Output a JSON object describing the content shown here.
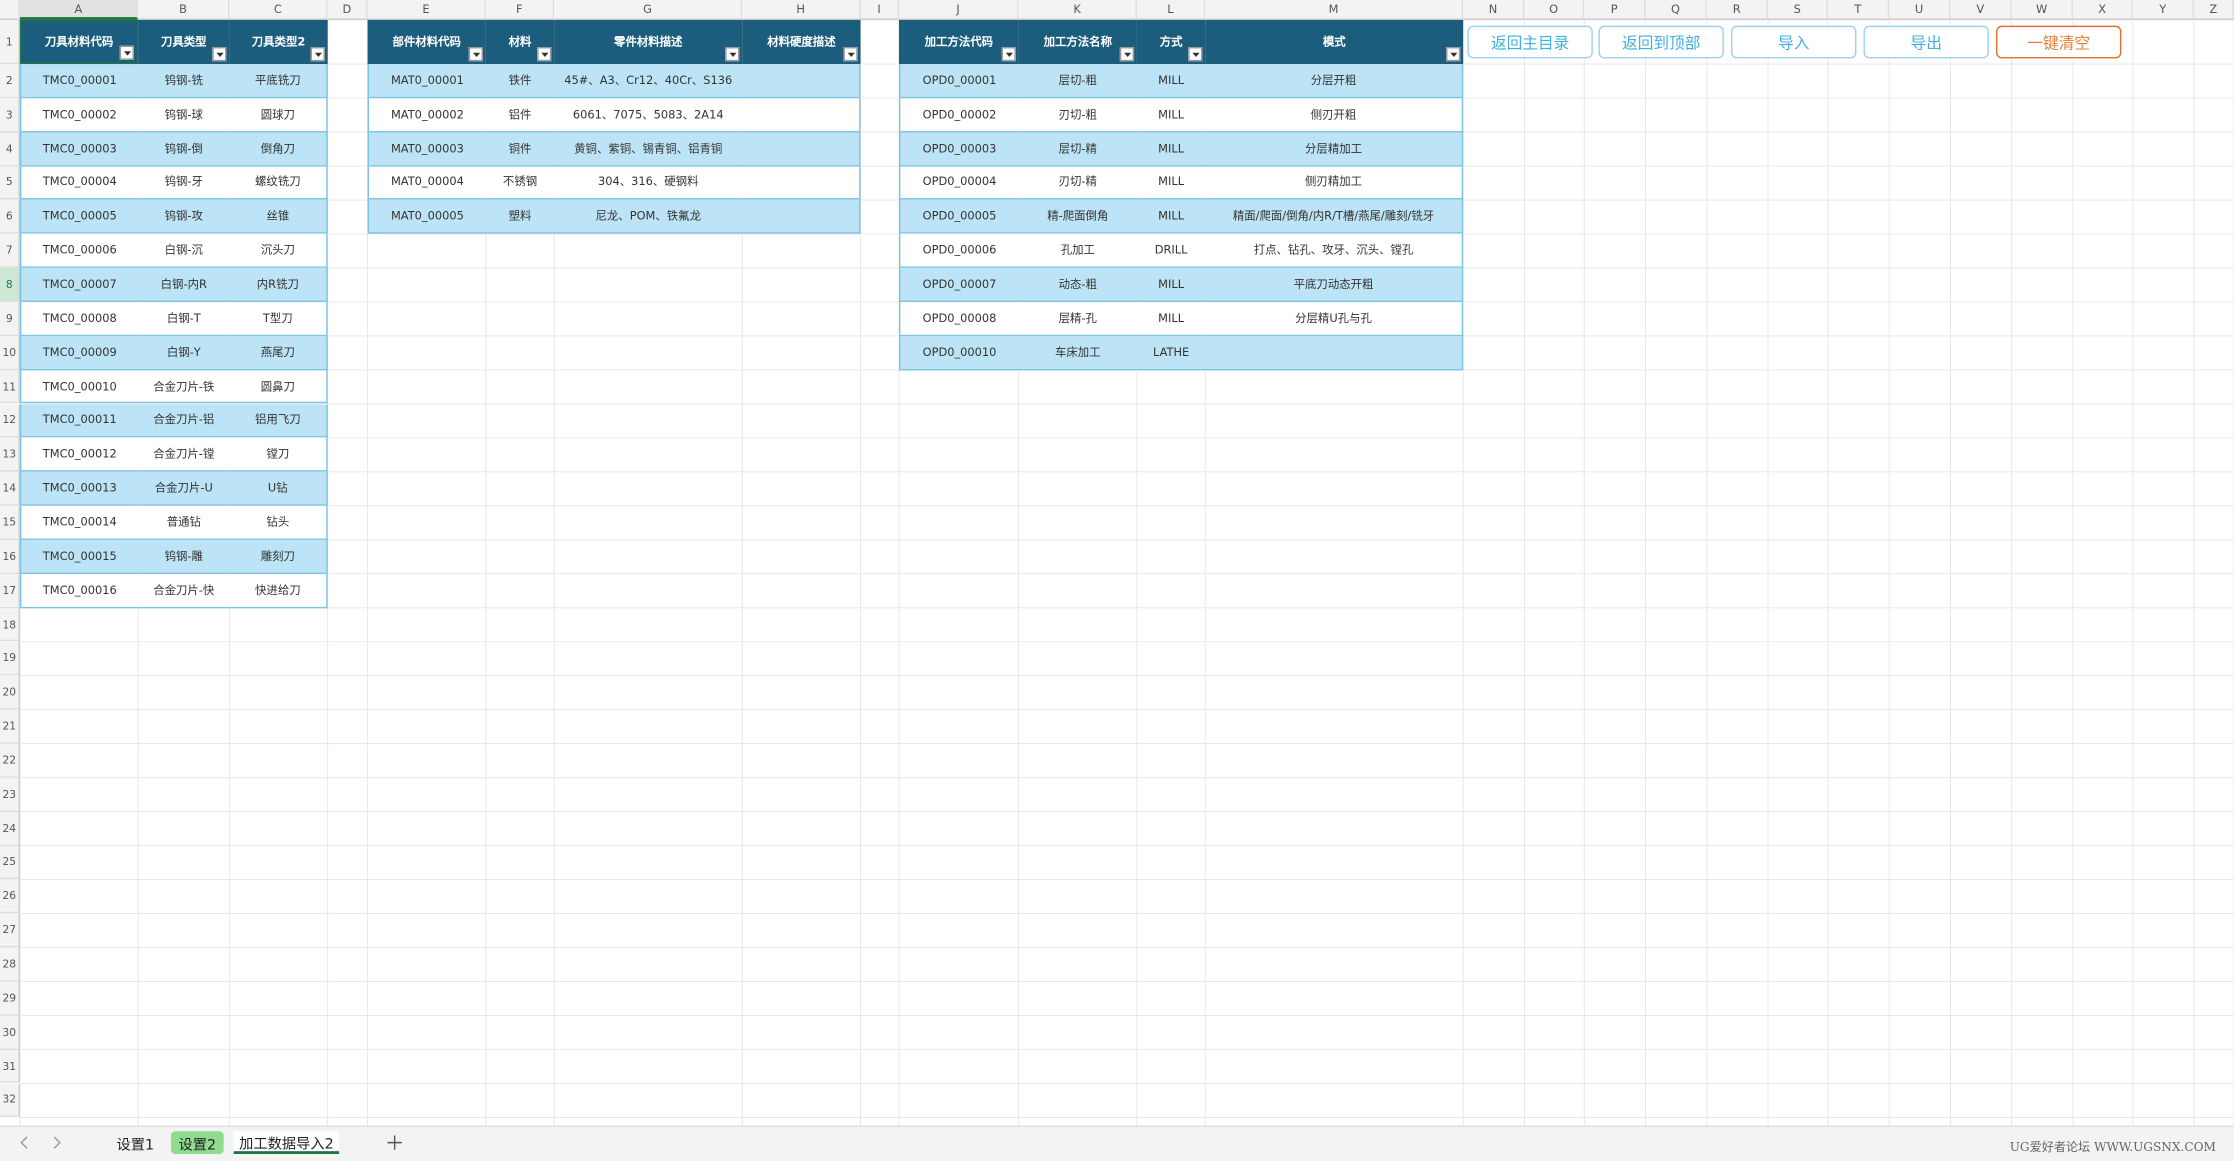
{
  "column_letters": [
    "A",
    "B",
    "C",
    "D",
    "E",
    "F",
    "G",
    "H",
    "I",
    "J",
    "K",
    "L",
    "M",
    "N",
    "O",
    "P",
    "Q",
    "R",
    "S",
    "T",
    "U",
    "V",
    "W",
    "X",
    "Y",
    "Z"
  ],
  "row_numbers": [
    "1",
    "2",
    "3",
    "4",
    "5",
    "6",
    "7",
    "8",
    "9",
    "10",
    "11",
    "12",
    "13",
    "14",
    "15",
    "16",
    "17",
    "18",
    "19",
    "20",
    "21",
    "22",
    "23",
    "24",
    "25",
    "26",
    "27",
    "28",
    "29",
    "30",
    "31",
    "32"
  ],
  "tables": [
    {
      "headers": [
        "刀具材料代码",
        "刀具类型",
        "刀具类型2"
      ],
      "rows": [
        [
          "TMC0_00001",
          "钨钢-铣",
          "平底铣刀"
        ],
        [
          "TMC0_00002",
          "钨钢-球",
          "圆球刀"
        ],
        [
          "TMC0_00003",
          "钨钢-倒",
          "倒角刀"
        ],
        [
          "TMC0_00004",
          "钨钢-牙",
          "螺纹铣刀"
        ],
        [
          "TMC0_00005",
          "钨钢-攻",
          "丝锥"
        ],
        [
          "TMC0_00006",
          "白钢-沉",
          "沉头刀"
        ],
        [
          "TMC0_00007",
          "白钢-内R",
          "内R铣刀"
        ],
        [
          "TMC0_00008",
          "白钢-T",
          "T型刀"
        ],
        [
          "TMC0_00009",
          "白钢-Y",
          "燕尾刀"
        ],
        [
          "TMC0_00010",
          "合金刀片-铁",
          "圆鼻刀"
        ],
        [
          "TMC0_00011",
          "合金刀片-铝",
          "铝用飞刀"
        ],
        [
          "TMC0_00012",
          "合金刀片-镗",
          "镗刀"
        ],
        [
          "TMC0_00013",
          "合金刀片-U",
          "U钻"
        ],
        [
          "TMC0_00014",
          "普通钻",
          "钻头"
        ],
        [
          "TMC0_00015",
          "钨钢-雕",
          "雕刻刀"
        ],
        [
          "TMC0_00016",
          "合金刀片-快",
          "快进给刀"
        ]
      ]
    },
    {
      "headers": [
        "部件材料代码",
        "材料",
        "零件材料描述",
        "材料硬度描述"
      ],
      "rows": [
        [
          "MAT0_00001",
          "铁件",
          "45#、A3、Cr12、40Cr、S136"
        ],
        [
          "MAT0_00002",
          "铝件",
          "6061、7075、5083、2A14"
        ],
        [
          "MAT0_00003",
          "铜件",
          "黄铜、紫铜、锡青铜、铝青铜"
        ],
        [
          "MAT0_00004",
          "不锈钢",
          "304、316、硬钢料"
        ],
        [
          "MAT0_00005",
          "塑料",
          "尼龙、POM、铁氟龙"
        ]
      ]
    },
    {
      "headers": [
        "加工方法代码",
        "加工方法名称",
        "方式",
        "模式"
      ],
      "rows": [
        [
          "OPD0_00001",
          "层切-粗",
          "MILL",
          "分层开粗"
        ],
        [
          "OPD0_00002",
          "刃切-粗",
          "MILL",
          "侧刃开粗"
        ],
        [
          "OPD0_00003",
          "层切-精",
          "MILL",
          "分层精加工"
        ],
        [
          "OPD0_00004",
          "刃切-精",
          "MILL",
          "侧刃精加工"
        ],
        [
          "OPD0_00005",
          "精-爬面倒角",
          "MILL",
          "精面/爬面/倒角/内R/T槽/燕尾/雕刻/铣牙"
        ],
        [
          "OPD0_00006",
          "孔加工",
          "DRILL",
          "打点、钻孔、攻牙、沉头、镗孔"
        ],
        [
          "OPD0_00007",
          "动态-粗",
          "MILL",
          "平底刀动态开粗"
        ],
        [
          "OPD0_00008",
          "层精-孔",
          "MILL",
          "分层精U孔与孔"
        ],
        [
          "OPD0_00010",
          "车床加工",
          "LATHE"
        ]
      ]
    }
  ],
  "buttons": [
    "返回主目录",
    "返回到顶部",
    "导入",
    "导出",
    "一键清空"
  ],
  "sheet_tabs": [
    "设置1",
    "设置2",
    "加工数据导入2"
  ],
  "watermark": "UG爱好者论坛 WWW.UGSNX.COM"
}
